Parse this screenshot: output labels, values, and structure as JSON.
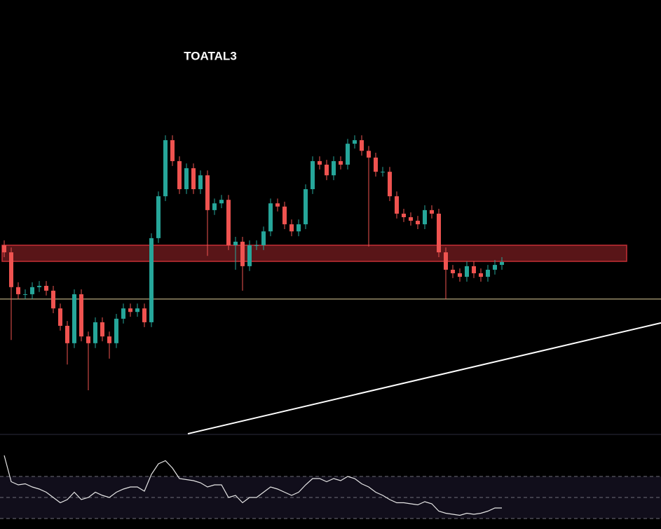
{
  "chart_data": [
    {
      "type": "candlestick",
      "title": "TOATAL3",
      "up_color": "#26a69a",
      "down_color": "#ef5350",
      "ylim": [
        0,
        134.8
      ],
      "open": [
        58.7,
        56.5,
        45.7,
        43.5,
        43.5,
        45.7,
        46.1,
        44.6,
        39.1,
        33.7,
        28.3,
        43.5,
        30.4,
        28.3,
        34.8,
        30.4,
        28.3,
        35.9,
        39.1,
        38.0,
        39.1,
        34.8,
        60.9,
        73.9,
        91.3,
        84.8,
        76.1,
        82.6,
        76.1,
        80.4,
        69.6,
        71.7,
        72.8,
        58.7,
        59.8,
        52.2,
        58.7,
        58.7,
        63.0,
        71.7,
        70.7,
        65.2,
        63.0,
        65.2,
        76.1,
        84.8,
        83.7,
        80.4,
        84.8,
        83.7,
        90.2,
        91.3,
        88.0,
        85.9,
        81.5,
        81.5,
        73.9,
        68.5,
        67.4,
        66.3,
        65.2,
        69.6,
        68.5,
        56.5,
        51.1,
        50.0,
        48.9,
        52.2,
        50.0,
        48.9,
        51.1,
        52.6
      ],
      "high": [
        60.2,
        58.0,
        47.2,
        45.0,
        47.2,
        47.6,
        47.6,
        46.1,
        40.6,
        35.2,
        45.0,
        45.0,
        31.9,
        36.3,
        36.3,
        31.9,
        37.4,
        40.6,
        40.6,
        40.6,
        40.6,
        62.4,
        75.4,
        92.8,
        92.8,
        86.3,
        84.1,
        84.1,
        81.9,
        81.9,
        73.2,
        74.3,
        74.3,
        61.3,
        61.3,
        60.2,
        60.2,
        64.5,
        73.2,
        73.2,
        72.2,
        66.7,
        66.7,
        77.6,
        86.3,
        86.3,
        85.2,
        86.3,
        86.3,
        91.7,
        92.8,
        92.8,
        89.5,
        87.4,
        83.0,
        83.0,
        75.4,
        70.0,
        68.9,
        67.8,
        71.1,
        71.1,
        70.0,
        58.0,
        52.6,
        51.5,
        53.7,
        53.7,
        51.5,
        52.6,
        54.1,
        55.0
      ],
      "low": [
        55.0,
        29.3,
        42.0,
        42.0,
        42.0,
        44.2,
        43.1,
        37.6,
        32.2,
        21.7,
        26.8,
        28.9,
        13.7,
        26.8,
        28.9,
        23.5,
        26.8,
        34.4,
        36.5,
        36.5,
        33.3,
        33.3,
        59.4,
        72.4,
        83.3,
        74.6,
        74.6,
        74.6,
        74.6,
        55.4,
        68.1,
        70.2,
        57.2,
        51.1,
        44.6,
        50.7,
        57.2,
        57.2,
        61.5,
        69.2,
        63.7,
        61.5,
        61.5,
        63.7,
        74.6,
        82.2,
        78.9,
        78.9,
        82.2,
        82.2,
        88.7,
        86.5,
        58.3,
        80.0,
        80.0,
        72.4,
        67.0,
        65.9,
        64.8,
        63.7,
        63.7,
        67.0,
        55.0,
        42.0,
        48.5,
        47.4,
        47.4,
        48.5,
        47.4,
        47.4,
        49.6,
        51.1
      ],
      "close": [
        56.5,
        45.7,
        43.5,
        43.5,
        45.7,
        46.1,
        44.6,
        39.1,
        33.7,
        28.3,
        43.5,
        30.4,
        28.3,
        34.8,
        30.4,
        28.3,
        35.9,
        39.1,
        38.0,
        39.1,
        34.8,
        60.9,
        73.9,
        91.3,
        84.8,
        76.1,
        82.6,
        76.1,
        80.4,
        69.6,
        71.7,
        72.8,
        58.7,
        59.8,
        52.2,
        58.7,
        58.7,
        63.0,
        71.7,
        70.7,
        65.2,
        63.0,
        65.2,
        76.1,
        84.8,
        83.7,
        80.4,
        84.8,
        83.7,
        90.2,
        91.3,
        88.0,
        85.9,
        81.5,
        81.5,
        73.9,
        68.5,
        67.4,
        66.3,
        65.2,
        69.6,
        68.5,
        56.5,
        51.1,
        50.0,
        48.9,
        52.2,
        50.0,
        48.9,
        51.1,
        52.6,
        53.5
      ],
      "zone": {
        "x": [
          -0.3,
          88.8
        ],
        "values": [
          53.7,
          58.7
        ],
        "color": "#c62f35"
      },
      "level": {
        "value": 42.0,
        "color": "#c8b98a"
      },
      "trendline": {
        "x": [
          26.2,
          93.7
        ],
        "values": [
          0.2,
          34.6
        ],
        "color": "#ffffff"
      }
    },
    {
      "type": "line",
      "ylim": [
        20,
        110
      ],
      "yticks": [
        30,
        50,
        70
      ],
      "color": "#e6e6e6",
      "values": [
        90,
        65,
        62,
        63,
        60,
        58,
        55,
        50,
        45,
        48,
        55,
        48,
        50,
        55,
        52,
        50,
        55,
        58,
        60,
        60,
        56,
        72,
        82,
        85,
        78,
        68,
        67,
        66,
        64,
        60,
        62,
        62,
        50,
        52,
        45,
        50,
        50,
        55,
        60,
        58,
        55,
        52,
        55,
        62,
        68,
        68,
        65,
        68,
        66,
        70,
        68,
        63,
        60,
        55,
        52,
        48,
        45,
        45,
        44,
        43,
        46,
        44,
        37,
        35,
        34,
        33,
        35,
        34,
        35,
        37,
        40,
        40
      ]
    }
  ]
}
